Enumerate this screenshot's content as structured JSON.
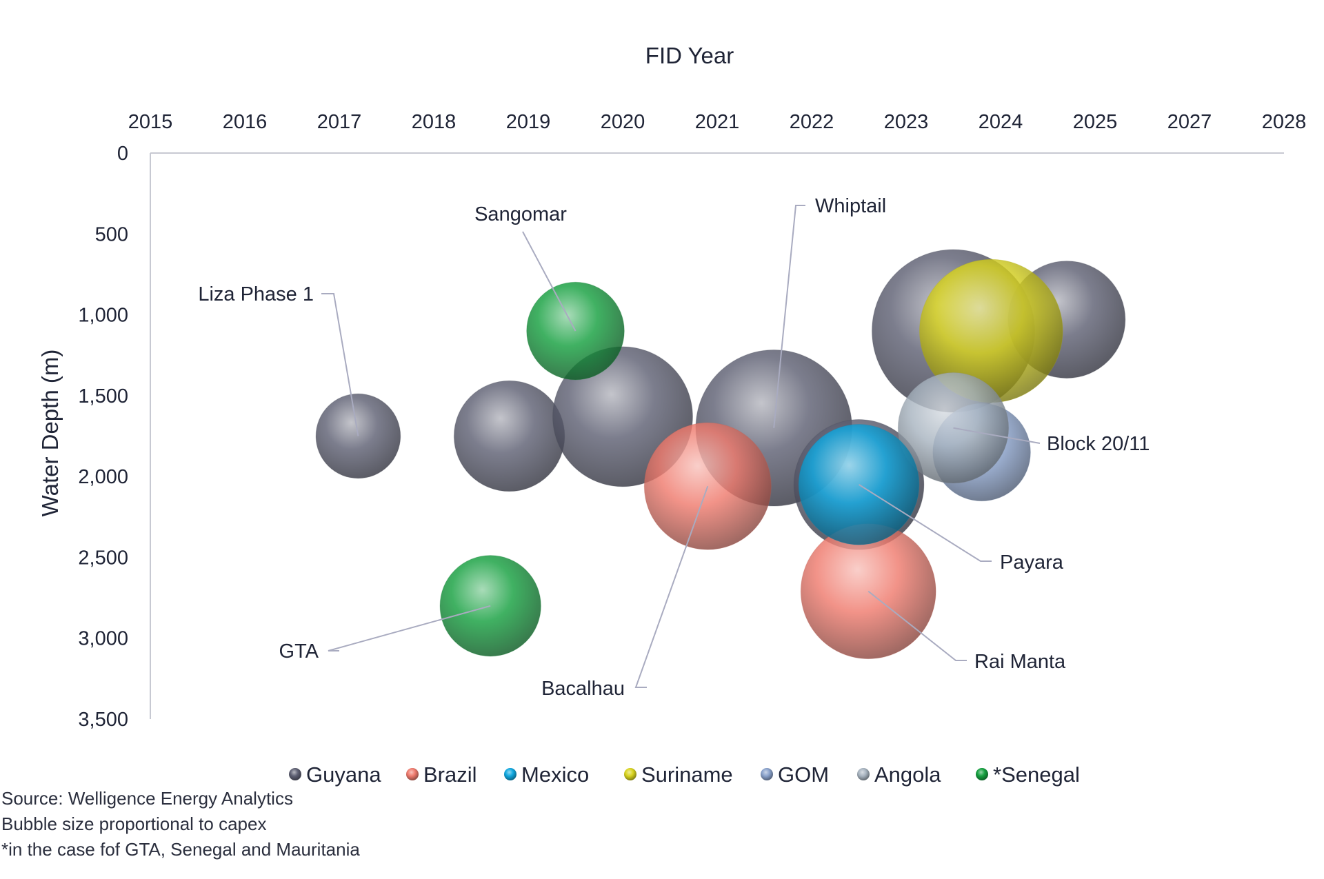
{
  "chart_data": {
    "type": "bubble",
    "xlabel": "FID Year",
    "ylabel": "Water Depth (m)",
    "x_ticks": [
      "2015",
      "2016",
      "2017",
      "2018",
      "2019",
      "2020",
      "2021",
      "2022",
      "2023",
      "2024",
      "2025",
      "2027",
      "2028"
    ],
    "y_ticks": [
      "0",
      "500",
      "1,000",
      "1,500",
      "2,000",
      "2,500",
      "3,000",
      "3,500"
    ],
    "ylim": [
      0,
      3500
    ],
    "y_reversed": true,
    "x_axis_position": "top",
    "grid": false,
    "legend_position": "bottom",
    "series": [
      {
        "name": "Guyana",
        "color": "#5f6174"
      },
      {
        "name": "Brazil",
        "color": "#ef7b6e"
      },
      {
        "name": "Mexico",
        "color": "#10a8e0"
      },
      {
        "name": "Suriname",
        "color": "#d9d41f"
      },
      {
        "name": "GOM",
        "color": "#8aa2cc"
      },
      {
        "name": "Angola",
        "color": "#a8b4c0"
      },
      {
        "name": "*Senegal",
        "color": "#16a040"
      }
    ],
    "points": [
      {
        "series": "Guyana",
        "x": 2017.2,
        "y": 1750,
        "size": 52
      },
      {
        "series": "Guyana",
        "x": 2018.8,
        "y": 1750,
        "size": 68
      },
      {
        "series": "Guyana",
        "x": 2020.0,
        "y": 1630,
        "size": 86
      },
      {
        "series": "Guyana",
        "x": 2021.6,
        "y": 1700,
        "size": 96
      },
      {
        "series": "Guyana",
        "x": 2022.5,
        "y": 2050,
        "size": 80
      },
      {
        "series": "Guyana",
        "x": 2023.5,
        "y": 1100,
        "size": 100
      },
      {
        "series": "Guyana",
        "x": 2024.7,
        "y": 1030,
        "size": 72
      },
      {
        "series": "Suriname",
        "x": 2023.9,
        "y": 1100,
        "size": 88
      },
      {
        "series": "GOM",
        "x": 2023.8,
        "y": 1850,
        "size": 60
      },
      {
        "series": "Angola",
        "x": 2023.5,
        "y": 1700,
        "size": 68
      },
      {
        "series": "Brazil",
        "x": 2020.9,
        "y": 2060,
        "size": 78
      },
      {
        "series": "Brazil",
        "x": 2022.6,
        "y": 2710,
        "size": 83
      },
      {
        "series": "Mexico",
        "x": 2022.5,
        "y": 2050,
        "size": 74
      },
      {
        "series": "*Senegal",
        "x": 2019.5,
        "y": 1100,
        "size": 60
      },
      {
        "series": "*Senegal",
        "x": 2018.6,
        "y": 2800,
        "size": 62
      }
    ],
    "annotations": [
      {
        "label": "Liza Phase 1",
        "x": 2017.2,
        "y": 1750
      },
      {
        "label": "Sangomar",
        "x": 2019.5,
        "y": 1100
      },
      {
        "label": "Whiptail",
        "x": 2021.6,
        "y": 1700
      },
      {
        "label": "Block 20/11",
        "x": 2023.5,
        "y": 1700
      },
      {
        "label": "Payara",
        "x": 2022.5,
        "y": 2050
      },
      {
        "label": "Rai Manta",
        "x": 2022.6,
        "y": 2710
      },
      {
        "label": "Bacalhau",
        "x": 2020.9,
        "y": 2060
      },
      {
        "label": "GTA",
        "x": 2018.6,
        "y": 2800
      }
    ]
  },
  "notes": [
    "Source: Welligence Energy Analytics",
    "Bubble size proportional to capex",
    "*in the case fof GTA, Senegal and Mauritania"
  ]
}
